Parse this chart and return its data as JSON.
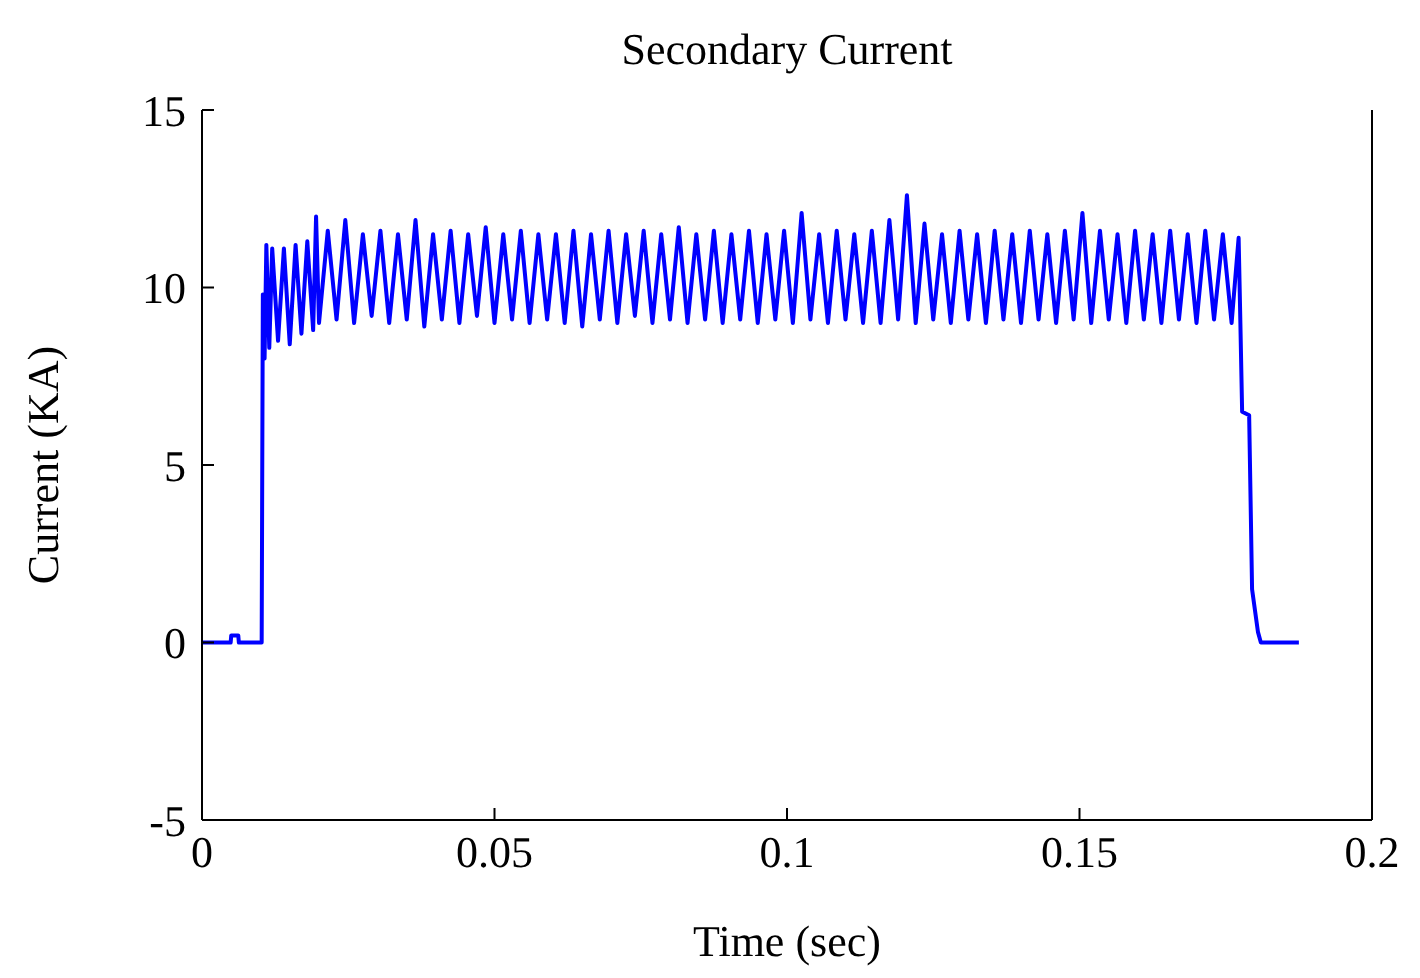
{
  "chart_data": {
    "type": "line",
    "title": "Secondary Current",
    "xlabel": "Time (sec)",
    "ylabel": "Current (KA)",
    "xlim": [
      0,
      0.2
    ],
    "xticks": [
      0,
      0.05,
      0.1,
      0.15,
      0.2
    ],
    "ylim": [
      -5,
      15
    ],
    "yticks": [
      -5,
      0,
      5,
      10,
      15
    ],
    "grid": false,
    "legend": false,
    "marker": "none",
    "line_style": "solid",
    "series": [
      {
        "color": "#0000ff",
        "x": [
          0,
          0.0049,
          0.005,
          0.0062,
          0.0063,
          0.0102,
          0.0104,
          0.0107,
          0.011,
          0.0115,
          0.012,
          0.013,
          0.014,
          0.015,
          0.016,
          0.017,
          0.018,
          0.019,
          0.0195,
          0.02,
          0.0215,
          0.023,
          0.0245,
          0.026,
          0.0275,
          0.029,
          0.0305,
          0.032,
          0.0335,
          0.035,
          0.0365,
          0.038,
          0.0395,
          0.041,
          0.0425,
          0.044,
          0.0455,
          0.047,
          0.0485,
          0.05,
          0.0515,
          0.053,
          0.0545,
          0.056,
          0.0575,
          0.059,
          0.0605,
          0.062,
          0.0635,
          0.065,
          0.0665,
          0.068,
          0.0695,
          0.071,
          0.0725,
          0.074,
          0.0755,
          0.077,
          0.0785,
          0.08,
          0.0815,
          0.083,
          0.0845,
          0.086,
          0.0875,
          0.089,
          0.0905,
          0.092,
          0.0935,
          0.095,
          0.0965,
          0.098,
          0.0995,
          0.101,
          0.1025,
          0.104,
          0.1055,
          0.107,
          0.1085,
          0.11,
          0.1115,
          0.113,
          0.1145,
          0.116,
          0.1175,
          0.119,
          0.1205,
          0.122,
          0.1235,
          0.125,
          0.1265,
          0.128,
          0.1295,
          0.131,
          0.1325,
          0.134,
          0.1355,
          0.137,
          0.1385,
          0.14,
          0.1415,
          0.143,
          0.1445,
          0.146,
          0.1475,
          0.149,
          0.1505,
          0.152,
          0.1535,
          0.155,
          0.1565,
          0.158,
          0.1595,
          0.161,
          0.1625,
          0.164,
          0.1655,
          0.167,
          0.1685,
          0.17,
          0.1715,
          0.173,
          0.1745,
          0.176,
          0.1772,
          0.1775,
          0.1778,
          0.179,
          0.1795,
          0.1805,
          0.181,
          0.1875
        ],
        "values": [
          0,
          0,
          0.2,
          0.2,
          0,
          0,
          9.8,
          8,
          11.2,
          8.3,
          11.1,
          8.5,
          11.1,
          8.4,
          11.2,
          8.7,
          11.3,
          8.8,
          12,
          9,
          11.6,
          9.1,
          11.9,
          9,
          11.5,
          9.2,
          11.6,
          9,
          11.5,
          9.1,
          11.9,
          8.9,
          11.5,
          9.1,
          11.6,
          9,
          11.5,
          9.2,
          11.7,
          9,
          11.5,
          9.1,
          11.6,
          9,
          11.5,
          9.1,
          11.5,
          9,
          11.6,
          8.9,
          11.5,
          9.1,
          11.6,
          9,
          11.5,
          9.2,
          11.6,
          9,
          11.5,
          9.1,
          11.7,
          9,
          11.5,
          9.1,
          11.6,
          9,
          11.5,
          9.1,
          11.6,
          9,
          11.5,
          9.1,
          11.6,
          9,
          12.1,
          9.1,
          11.5,
          9,
          11.6,
          9.1,
          11.5,
          9,
          11.6,
          9,
          11.9,
          9.1,
          12.6,
          9,
          11.8,
          9.1,
          11.5,
          9,
          11.6,
          9.1,
          11.5,
          9,
          11.6,
          9.1,
          11.5,
          9,
          11.6,
          9.1,
          11.5,
          9,
          11.6,
          9.1,
          12.1,
          9,
          11.6,
          9.1,
          11.5,
          9,
          11.6,
          9.1,
          11.5,
          9,
          11.6,
          9.1,
          11.5,
          9,
          11.6,
          9.1,
          11.5,
          9,
          11.4,
          9,
          6.5,
          6.4,
          1.5,
          0.3,
          0,
          0
        ]
      }
    ]
  }
}
